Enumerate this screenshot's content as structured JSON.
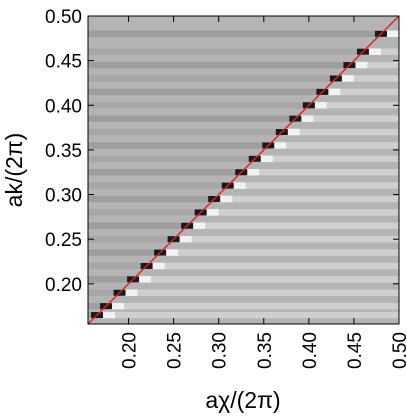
{
  "chart_data": {
    "type": "heatmap",
    "title": "",
    "xlabel": "aχ/(2π)",
    "ylabel": "ak/(2π)",
    "xlim": [
      0.155,
      0.5
    ],
    "ylim": [
      0.155,
      0.5
    ],
    "x_ticks": [
      "0.20",
      "0.25",
      "0.30",
      "0.35",
      "0.40",
      "0.45",
      "0.50"
    ],
    "y_ticks": [
      "0.20",
      "0.25",
      "0.30",
      "0.35",
      "0.40",
      "0.45",
      "0.50"
    ],
    "x_tick_values": [
      0.2,
      0.25,
      0.3,
      0.35,
      0.4,
      0.45,
      0.5
    ],
    "y_tick_values": [
      0.2,
      0.25,
      0.3,
      0.35,
      0.4,
      0.45,
      0.5
    ],
    "grid": false,
    "background_color": "#b4b4b4",
    "colormap": "grayscale",
    "diagonal_line": {
      "from": [
        0.155,
        0.155
      ],
      "to": [
        0.5,
        0.5
      ],
      "color": "#e02020"
    },
    "band_rows": [
      0.165,
      0.175,
      0.19,
      0.205,
      0.22,
      0.235,
      0.25,
      0.265,
      0.28,
      0.295,
      0.31,
      0.325,
      0.34,
      0.355,
      0.37,
      0.385,
      0.4,
      0.415,
      0.43,
      0.445,
      0.46,
      0.48
    ],
    "resonance_points": [
      [
        0.165,
        0.165
      ],
      [
        0.175,
        0.175
      ],
      [
        0.19,
        0.19
      ],
      [
        0.205,
        0.205
      ],
      [
        0.22,
        0.22
      ],
      [
        0.235,
        0.235
      ],
      [
        0.25,
        0.25
      ],
      [
        0.265,
        0.265
      ],
      [
        0.28,
        0.28
      ],
      [
        0.295,
        0.295
      ],
      [
        0.31,
        0.31
      ],
      [
        0.325,
        0.325
      ],
      [
        0.34,
        0.34
      ],
      [
        0.355,
        0.355
      ],
      [
        0.37,
        0.37
      ],
      [
        0.385,
        0.385
      ],
      [
        0.4,
        0.4
      ],
      [
        0.415,
        0.415
      ],
      [
        0.43,
        0.43
      ],
      [
        0.445,
        0.445
      ],
      [
        0.46,
        0.46
      ],
      [
        0.48,
        0.48
      ]
    ]
  }
}
